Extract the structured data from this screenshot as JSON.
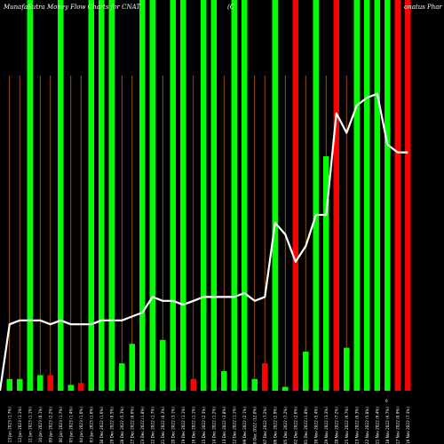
{
  "chart_data": {
    "type": "bar",
    "title": "MunafaSutra Money Flow Charts for CNAT",
    "title_middle": "(C",
    "title_right": "onatus Phar",
    "price_tag": "6",
    "x": [
      "Fri 13 Jan 2023 (1.7%)",
      "Thu 12 Jan 2023 (1.1%)",
      "Wed 11 Jan 2023 (1.1%)",
      "Tue 10 Jan 2023 (0.1%)",
      "Mon 09 Jan 2023 (2.2%)",
      "Fri 06 Jan 2023 (1.7%)",
      "Thu 05 Jan 2023 (1.4%)",
      "Wed 04 Jan 2023 (1.0%)",
      "Tue 03 Jan 2023 (1.6%)",
      "Fri 30 Dec 2022 (1.6%)",
      "Thu 29 Dec 2022 (0.5%)",
      "Wed 28 Dec 2022 (5.3%)",
      "Tue 27 Dec 2022 (0.6%)",
      "Fri 23 Dec 2022 (1.8%)",
      "Thu 22 Dec 2022 (1.7%)",
      "Wed 21 Dec 2022 (0.3%)",
      "Tue 20 Dec 2022 (3.1%)",
      "Mon 19 Dec 2022 (1.1%)",
      "Fri 16 Dec 2022 (1.1%)",
      "Thu 15 Dec 2022 (2.3%)",
      "Wed 14 Dec 2022 (1.2%)",
      "Tue 13 Dec 2022 (3.8%)",
      "Mon 12 Dec 2022 (1.1%)",
      "Fri 09 Dec 2022 (2.1%)",
      "Thu 08 Dec 2022 (12.0%)",
      "Wed 07 Dec 2022 (7.2%)",
      "Tue 06 Dec 2022 (2.9%)",
      "Mon 05 Dec 2022 (7.2%)",
      "Fri 02 Dec 2022 (2.6%)",
      "Thu 01 Dec 2022 (1.8%)",
      "Wed 30 Nov 2022 (5.4%)",
      "Tue 29 Nov 2022 (3.3%)",
      "Mon 28 Nov 2022 (7.2%)",
      "Fri 25 Nov 2022 (6.7%)",
      "Wed 23 Nov 2022 (6.3%)",
      "Tue 22 Nov 2022 (5.8%)",
      "Mon 21 Nov 2022 (6.4%)",
      "Fri 18 Nov 2022 (6.7%)",
      "Thu 17 Nov 2022 (0.9%)",
      "Wed 16 Nov 2022 (7.3%)"
    ],
    "bar_heights": [
      3,
      3,
      100,
      4,
      4,
      100,
      1.5,
      2,
      100,
      100,
      100,
      7,
      12,
      100,
      100,
      13,
      100,
      100,
      3,
      100,
      100,
      5,
      100,
      100,
      3,
      7,
      100,
      1,
      100,
      10,
      100,
      60,
      100,
      11,
      100,
      100,
      100,
      100,
      100,
      100
    ],
    "bar_colors": [
      "green",
      "green",
      "green",
      "green",
      "red",
      "green",
      "green",
      "red",
      "green",
      "green",
      "green",
      "green",
      "green",
      "green",
      "green",
      "green",
      "green",
      "green",
      "red",
      "green",
      "green",
      "green",
      "green",
      "green",
      "green",
      "red",
      "green",
      "green",
      "red",
      "green",
      "green",
      "green",
      "red",
      "green",
      "green",
      "green",
      "green",
      "green",
      "red",
      "red"
    ],
    "line_values": [
      17,
      18,
      18,
      18,
      17,
      18,
      17,
      17,
      17,
      18,
      18,
      18,
      19,
      20,
      24,
      23,
      23,
      22,
      23,
      24,
      24,
      24,
      24,
      25,
      23,
      24,
      43,
      40,
      33,
      37,
      45,
      45,
      71,
      66,
      73,
      75,
      76,
      63,
      61,
      61
    ],
    "ylim": [
      0,
      100
    ],
    "colors": {
      "background": "#000000",
      "green": "#00ff00",
      "red": "#ff0000",
      "grid": "#b5651d",
      "line": "#ffffff"
    }
  }
}
